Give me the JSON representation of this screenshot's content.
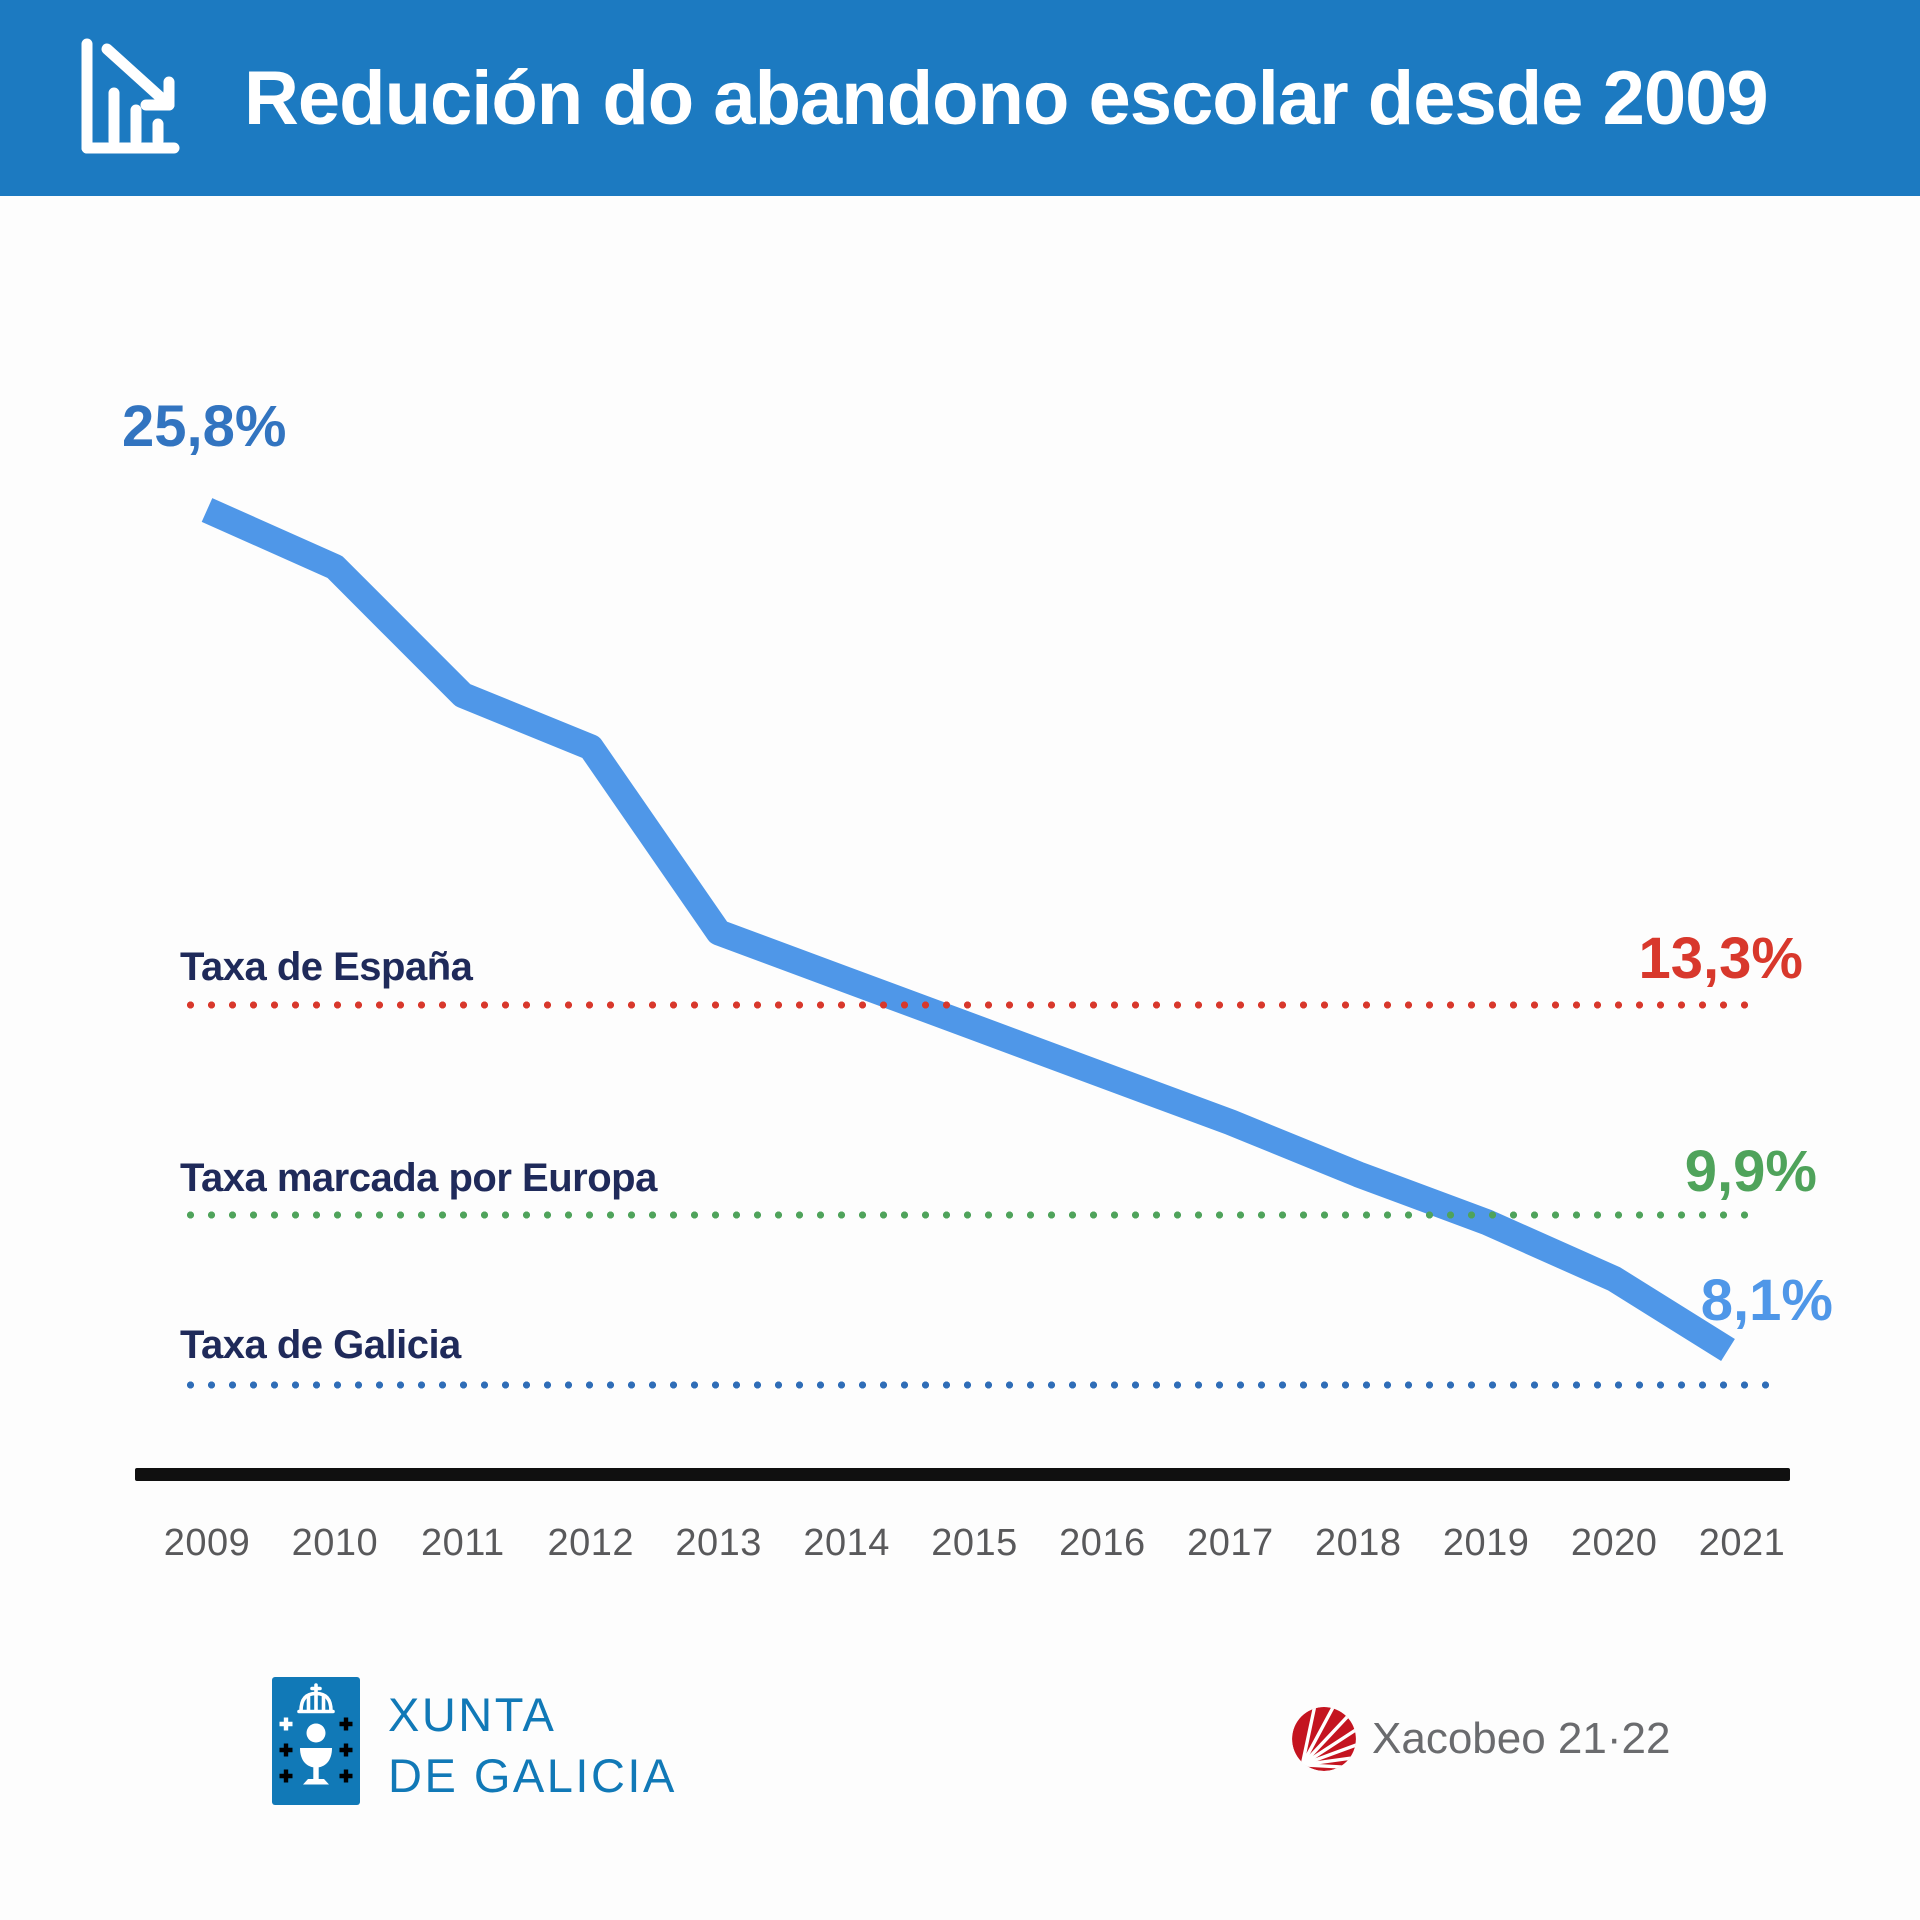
{
  "header": {
    "title": "Redución do abandono escolar desde 2009",
    "icon": "declining-bar-chart-with-arrow-icon"
  },
  "chart": {
    "start_label": "25,8%",
    "end_label": "8,1%",
    "refs": [
      {
        "label": "Taxa de España",
        "value_label": "13,3%",
        "color": "#d8382c"
      },
      {
        "label": "Taxa marcada por Europa",
        "value_label": "9,9%",
        "color": "#4fa35b"
      },
      {
        "label": "Taxa de Galicia",
        "value_label": "",
        "color": "#2f6db7"
      }
    ]
  },
  "footer": {
    "xunta_line1": "XUNTA",
    "xunta_line2": "DE GALICIA",
    "xacobeo_text": "Xacobeo 21·22"
  },
  "theme": {
    "background": "#fdfdfd",
    "header_bg": "#1c7ac1",
    "line_blue": "#4f97e8",
    "value_blue_dark": "#3274c0",
    "navy": "#1f2a5a",
    "year_gray": "#59595b",
    "axis_black": "#101010",
    "xunta_blue": "#1179b7",
    "xacobeo_red": "#c41420",
    "xacobeo_gray": "#6a6b6e"
  },
  "chart_data": {
    "type": "line",
    "title": "Redución do abandono escolar desde 2009",
    "x": [
      2009,
      2010,
      2011,
      2012,
      2013,
      2014,
      2015,
      2016,
      2017,
      2018,
      2019,
      2020,
      2021
    ],
    "series": [
      {
        "name": "Taxa de Galicia",
        "color": "#4f97e8",
        "values": [
          25.8,
          24.6,
          21.9,
          20.8,
          16.9,
          15.9,
          14.9,
          13.9,
          12.9,
          11.8,
          10.8,
          9.6,
          8.1
        ]
      }
    ],
    "point_labels": {
      "2009": "25,8%",
      "2021": "8,1%"
    },
    "reference_lines": [
      {
        "label": "Taxa de España",
        "value": 13.3,
        "value_label": "13,3%",
        "color": "#d8382c",
        "style": "dotted"
      },
      {
        "label": "Taxa marcada por Europa",
        "value": 9.9,
        "value_label": "9,9%",
        "color": "#4fa35b",
        "style": "dotted"
      },
      {
        "label": "Taxa de Galicia",
        "value": 8.1,
        "value_label": "",
        "color": "#2f6db7",
        "style": "dotted"
      }
    ],
    "xlabel": "",
    "ylabel": "",
    "ylim": [
      8.1,
      25.8
    ],
    "grid": false,
    "legend_position": "none"
  }
}
